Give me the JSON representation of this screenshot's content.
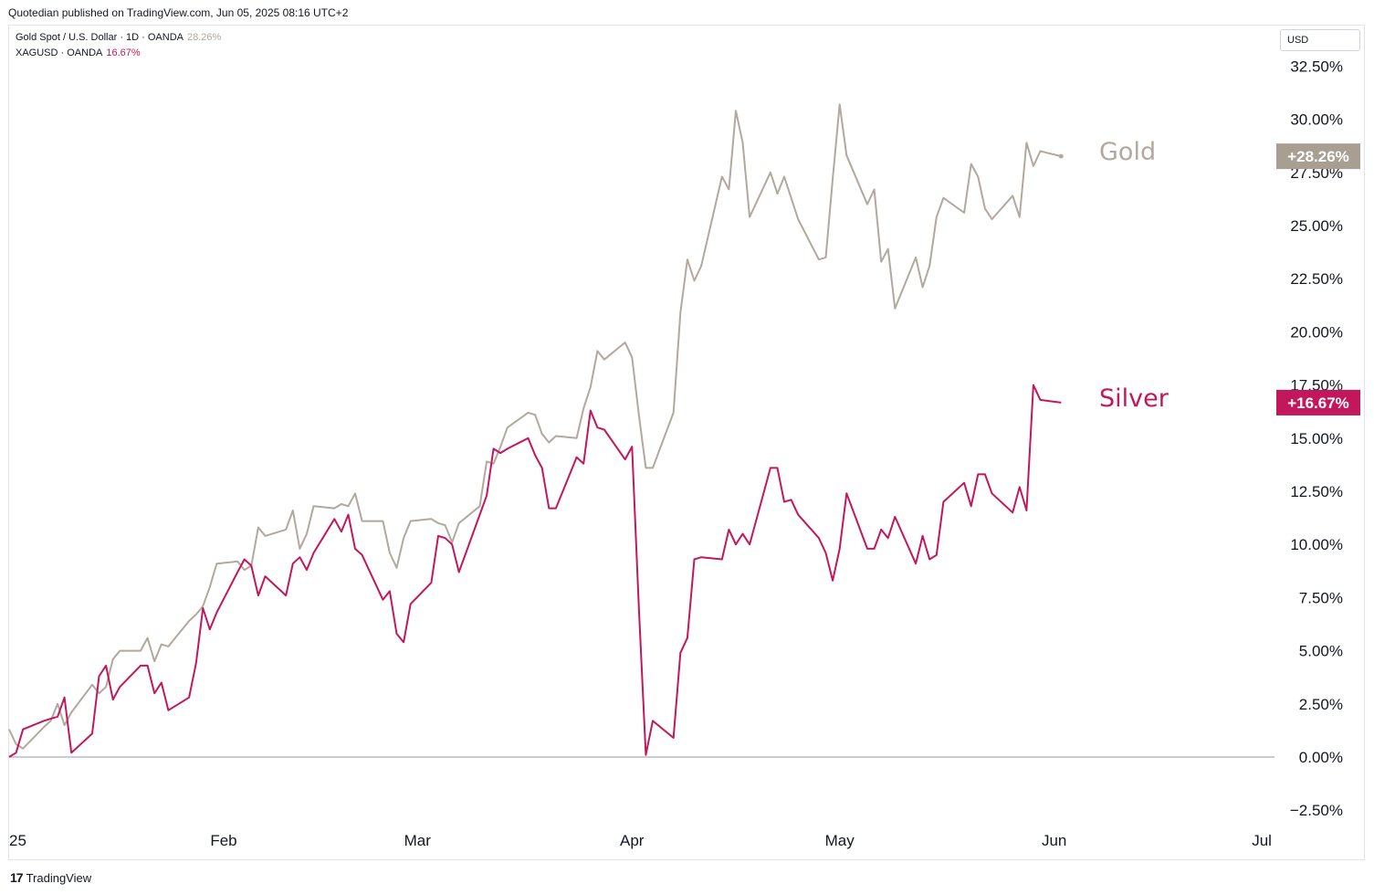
{
  "header": {
    "published_note": "Quotedian published on TradingView.com, Jun 05, 2025 08:16 UTC+2"
  },
  "legend": {
    "gold": {
      "label": "Gold Spot / U.S. Dollar · 1D · OANDA",
      "pct": "28.26%"
    },
    "silver": {
      "label": "XAGUSD · OANDA",
      "pct": "16.67%"
    }
  },
  "currency": "USD",
  "footer": {
    "logo_text": "TradingView",
    "logo_mark": "17"
  },
  "colors": {
    "gold": "#b2a89d",
    "silver": "#c2185b",
    "gold_badge": "#a89e92",
    "silver_badge": "#c2185b"
  },
  "chart_data": {
    "type": "line",
    "title": "",
    "ylabel": "",
    "xlabel": "",
    "ylim": [
      -3.0,
      33.5
    ],
    "y_ticks": [
      "32.50%",
      "30.00%",
      "27.50%",
      "25.00%",
      "22.50%",
      "20.00%",
      "17.50%",
      "15.00%",
      "12.50%",
      "10.00%",
      "7.50%",
      "5.00%",
      "2.50%",
      "0.00%",
      "−2.50%"
    ],
    "y_tick_values": [
      32.5,
      30,
      27.5,
      25,
      22.5,
      20,
      17.5,
      15,
      12.5,
      10,
      7.5,
      5,
      2.5,
      0,
      -2.5
    ],
    "x_tick_labels": [
      "25",
      "Feb",
      "Mar",
      "Apr",
      "May",
      "Jun",
      "Jul"
    ],
    "x_tick_dates": [
      "2025-01-01",
      "2025-02-01",
      "2025-03-01",
      "2025-04-01",
      "2025-05-01",
      "2025-06-01",
      "2025-07-01"
    ],
    "x_range": [
      "2025-01-01",
      "2025-07-04"
    ],
    "legend_placement": "right-of-line-ends",
    "series": [
      {
        "name": "Gold",
        "badge": "+28.26%",
        "points": [
          [
            "2025-01-01",
            1.3
          ],
          [
            "2025-01-02",
            0.6
          ],
          [
            "2025-01-03",
            0.4
          ],
          [
            "2025-01-06",
            1.4
          ],
          [
            "2025-01-07",
            1.7
          ],
          [
            "2025-01-08",
            2.5
          ],
          [
            "2025-01-09",
            1.5
          ],
          [
            "2025-01-10",
            2.1
          ],
          [
            "2025-01-13",
            3.4
          ],
          [
            "2025-01-14",
            3.0
          ],
          [
            "2025-01-15",
            3.3
          ],
          [
            "2025-01-16",
            4.6
          ],
          [
            "2025-01-17",
            5.0
          ],
          [
            "2025-01-20",
            5.0
          ],
          [
            "2025-01-21",
            5.6
          ],
          [
            "2025-01-22",
            4.5
          ],
          [
            "2025-01-23",
            5.3
          ],
          [
            "2025-01-24",
            5.2
          ],
          [
            "2025-01-27",
            6.4
          ],
          [
            "2025-01-28",
            6.7
          ],
          [
            "2025-01-29",
            7.1
          ],
          [
            "2025-01-30",
            8.0
          ],
          [
            "2025-01-31",
            9.1
          ],
          [
            "2025-02-03",
            9.2
          ],
          [
            "2025-02-04",
            8.8
          ],
          [
            "2025-02-05",
            9.0
          ],
          [
            "2025-02-06",
            10.8
          ],
          [
            "2025-02-07",
            10.4
          ],
          [
            "2025-02-10",
            10.7
          ],
          [
            "2025-02-11",
            11.6
          ],
          [
            "2025-02-12",
            9.8
          ],
          [
            "2025-02-13",
            10.5
          ],
          [
            "2025-02-14",
            11.8
          ],
          [
            "2025-02-17",
            11.7
          ],
          [
            "2025-02-18",
            11.9
          ],
          [
            "2025-02-19",
            11.8
          ],
          [
            "2025-02-20",
            12.4
          ],
          [
            "2025-02-21",
            11.1
          ],
          [
            "2025-02-24",
            11.1
          ],
          [
            "2025-02-25",
            9.6
          ],
          [
            "2025-02-26",
            8.9
          ],
          [
            "2025-02-27",
            10.3
          ],
          [
            "2025-02-28",
            11.1
          ],
          [
            "2025-03-03",
            11.2
          ],
          [
            "2025-03-04",
            11.0
          ],
          [
            "2025-03-05",
            10.9
          ],
          [
            "2025-03-06",
            10.1
          ],
          [
            "2025-03-07",
            11.0
          ],
          [
            "2025-03-10",
            11.8
          ],
          [
            "2025-03-11",
            13.9
          ],
          [
            "2025-03-12",
            13.8
          ],
          [
            "2025-03-13",
            14.6
          ],
          [
            "2025-03-14",
            15.5
          ],
          [
            "2025-03-17",
            16.2
          ],
          [
            "2025-03-18",
            16.1
          ],
          [
            "2025-03-19",
            15.2
          ],
          [
            "2025-03-20",
            14.8
          ],
          [
            "2025-03-21",
            15.1
          ],
          [
            "2025-03-24",
            15.0
          ],
          [
            "2025-03-25",
            16.4
          ],
          [
            "2025-03-26",
            17.4
          ],
          [
            "2025-03-27",
            19.1
          ],
          [
            "2025-03-28",
            18.7
          ],
          [
            "2025-03-31",
            19.5
          ],
          [
            "2025-04-01",
            18.8
          ],
          [
            "2025-04-02",
            16.1
          ],
          [
            "2025-04-03",
            13.6
          ],
          [
            "2025-04-04",
            13.6
          ],
          [
            "2025-04-07",
            16.2
          ],
          [
            "2025-04-08",
            20.9
          ],
          [
            "2025-04-09",
            23.4
          ],
          [
            "2025-04-10",
            22.4
          ],
          [
            "2025-04-11",
            23.1
          ],
          [
            "2025-04-14",
            27.3
          ],
          [
            "2025-04-15",
            26.7
          ],
          [
            "2025-04-16",
            30.4
          ],
          [
            "2025-04-17",
            28.9
          ],
          [
            "2025-04-18",
            25.4
          ],
          [
            "2025-04-21",
            27.5
          ],
          [
            "2025-04-22",
            26.5
          ],
          [
            "2025-04-23",
            27.3
          ],
          [
            "2025-04-24",
            26.3
          ],
          [
            "2025-04-25",
            25.3
          ],
          [
            "2025-04-28",
            23.4
          ],
          [
            "2025-04-29",
            23.5
          ],
          [
            "2025-04-30",
            27.2
          ],
          [
            "2025-05-01",
            30.7
          ],
          [
            "2025-05-02",
            28.3
          ],
          [
            "2025-05-05",
            26.0
          ],
          [
            "2025-05-06",
            26.7
          ],
          [
            "2025-05-07",
            23.3
          ],
          [
            "2025-05-08",
            23.9
          ],
          [
            "2025-05-09",
            21.1
          ],
          [
            "2025-05-12",
            23.5
          ],
          [
            "2025-05-13",
            22.1
          ],
          [
            "2025-05-14",
            23.1
          ],
          [
            "2025-05-15",
            25.4
          ],
          [
            "2025-05-16",
            26.3
          ],
          [
            "2025-05-19",
            25.6
          ],
          [
            "2025-05-20",
            27.9
          ],
          [
            "2025-05-21",
            27.3
          ],
          [
            "2025-05-22",
            25.8
          ],
          [
            "2025-05-23",
            25.3
          ],
          [
            "2025-05-26",
            26.4
          ],
          [
            "2025-05-27",
            25.4
          ],
          [
            "2025-05-28",
            28.9
          ],
          [
            "2025-05-29",
            27.8
          ],
          [
            "2025-05-30",
            28.5
          ],
          [
            "2025-06-02",
            28.26
          ]
        ]
      },
      {
        "name": "Silver",
        "badge": "+16.67%",
        "points": [
          [
            "2025-01-01",
            0.0
          ],
          [
            "2025-01-02",
            0.2
          ],
          [
            "2025-01-03",
            1.3
          ],
          [
            "2025-01-06",
            1.7
          ],
          [
            "2025-01-07",
            1.8
          ],
          [
            "2025-01-08",
            1.9
          ],
          [
            "2025-01-09",
            2.8
          ],
          [
            "2025-01-10",
            0.2
          ],
          [
            "2025-01-13",
            1.1
          ],
          [
            "2025-01-14",
            3.8
          ],
          [
            "2025-01-15",
            4.3
          ],
          [
            "2025-01-16",
            2.7
          ],
          [
            "2025-01-17",
            3.3
          ],
          [
            "2025-01-20",
            4.3
          ],
          [
            "2025-01-21",
            4.3
          ],
          [
            "2025-01-22",
            3.0
          ],
          [
            "2025-01-23",
            3.5
          ],
          [
            "2025-01-24",
            2.2
          ],
          [
            "2025-01-27",
            2.8
          ],
          [
            "2025-01-28",
            4.4
          ],
          [
            "2025-01-29",
            7.0
          ],
          [
            "2025-01-30",
            6.0
          ],
          [
            "2025-01-31",
            6.8
          ],
          [
            "2025-02-03",
            8.7
          ],
          [
            "2025-02-04",
            9.3
          ],
          [
            "2025-02-05",
            9.0
          ],
          [
            "2025-02-06",
            7.6
          ],
          [
            "2025-02-07",
            8.5
          ],
          [
            "2025-02-10",
            7.6
          ],
          [
            "2025-02-11",
            9.1
          ],
          [
            "2025-02-12",
            9.4
          ],
          [
            "2025-02-13",
            8.8
          ],
          [
            "2025-02-14",
            9.6
          ],
          [
            "2025-02-17",
            11.2
          ],
          [
            "2025-02-18",
            10.6
          ],
          [
            "2025-02-19",
            11.4
          ],
          [
            "2025-02-20",
            9.8
          ],
          [
            "2025-02-21",
            9.5
          ],
          [
            "2025-02-24",
            7.4
          ],
          [
            "2025-02-25",
            7.8
          ],
          [
            "2025-02-26",
            5.8
          ],
          [
            "2025-02-27",
            5.4
          ],
          [
            "2025-02-28",
            7.2
          ],
          [
            "2025-03-03",
            8.2
          ],
          [
            "2025-03-04",
            10.4
          ],
          [
            "2025-03-05",
            10.3
          ],
          [
            "2025-03-06",
            10.0
          ],
          [
            "2025-03-07",
            8.7
          ],
          [
            "2025-03-10",
            11.4
          ],
          [
            "2025-03-11",
            12.3
          ],
          [
            "2025-03-12",
            14.5
          ],
          [
            "2025-03-13",
            14.3
          ],
          [
            "2025-03-14",
            14.5
          ],
          [
            "2025-03-17",
            15.0
          ],
          [
            "2025-03-18",
            14.2
          ],
          [
            "2025-03-19",
            13.6
          ],
          [
            "2025-03-20",
            11.7
          ],
          [
            "2025-03-21",
            11.7
          ],
          [
            "2025-03-24",
            14.1
          ],
          [
            "2025-03-25",
            13.8
          ],
          [
            "2025-03-26",
            16.3
          ],
          [
            "2025-03-27",
            15.5
          ],
          [
            "2025-03-28",
            15.4
          ],
          [
            "2025-03-31",
            14.0
          ],
          [
            "2025-04-01",
            14.6
          ],
          [
            "2025-04-02",
            7.0
          ],
          [
            "2025-04-03",
            0.1
          ],
          [
            "2025-04-04",
            1.7
          ],
          [
            "2025-04-07",
            0.9
          ],
          [
            "2025-04-08",
            4.9
          ],
          [
            "2025-04-09",
            5.6
          ],
          [
            "2025-04-10",
            9.3
          ],
          [
            "2025-04-11",
            9.4
          ],
          [
            "2025-04-14",
            9.3
          ],
          [
            "2025-04-15",
            10.7
          ],
          [
            "2025-04-16",
            10.0
          ],
          [
            "2025-04-17",
            10.5
          ],
          [
            "2025-04-18",
            10.0
          ],
          [
            "2025-04-21",
            13.6
          ],
          [
            "2025-04-22",
            13.6
          ],
          [
            "2025-04-23",
            12.0
          ],
          [
            "2025-04-24",
            12.1
          ],
          [
            "2025-04-25",
            11.4
          ],
          [
            "2025-04-28",
            10.3
          ],
          [
            "2025-04-29",
            9.6
          ],
          [
            "2025-04-30",
            8.3
          ],
          [
            "2025-05-01",
            9.8
          ],
          [
            "2025-05-02",
            12.4
          ],
          [
            "2025-05-05",
            9.8
          ],
          [
            "2025-05-06",
            9.8
          ],
          [
            "2025-05-07",
            10.7
          ],
          [
            "2025-05-08",
            10.3
          ],
          [
            "2025-05-09",
            11.3
          ],
          [
            "2025-05-12",
            9.1
          ],
          [
            "2025-05-13",
            10.4
          ],
          [
            "2025-05-14",
            9.3
          ],
          [
            "2025-05-15",
            9.5
          ],
          [
            "2025-05-16",
            12.0
          ],
          [
            "2025-05-19",
            12.9
          ],
          [
            "2025-05-20",
            11.8
          ],
          [
            "2025-05-21",
            13.3
          ],
          [
            "2025-05-22",
            13.3
          ],
          [
            "2025-05-23",
            12.4
          ],
          [
            "2025-05-26",
            11.5
          ],
          [
            "2025-05-27",
            12.7
          ],
          [
            "2025-05-28",
            11.6
          ],
          [
            "2025-05-29",
            17.5
          ],
          [
            "2025-05-30",
            16.8
          ],
          [
            "2025-06-02",
            16.67
          ]
        ]
      }
    ]
  }
}
